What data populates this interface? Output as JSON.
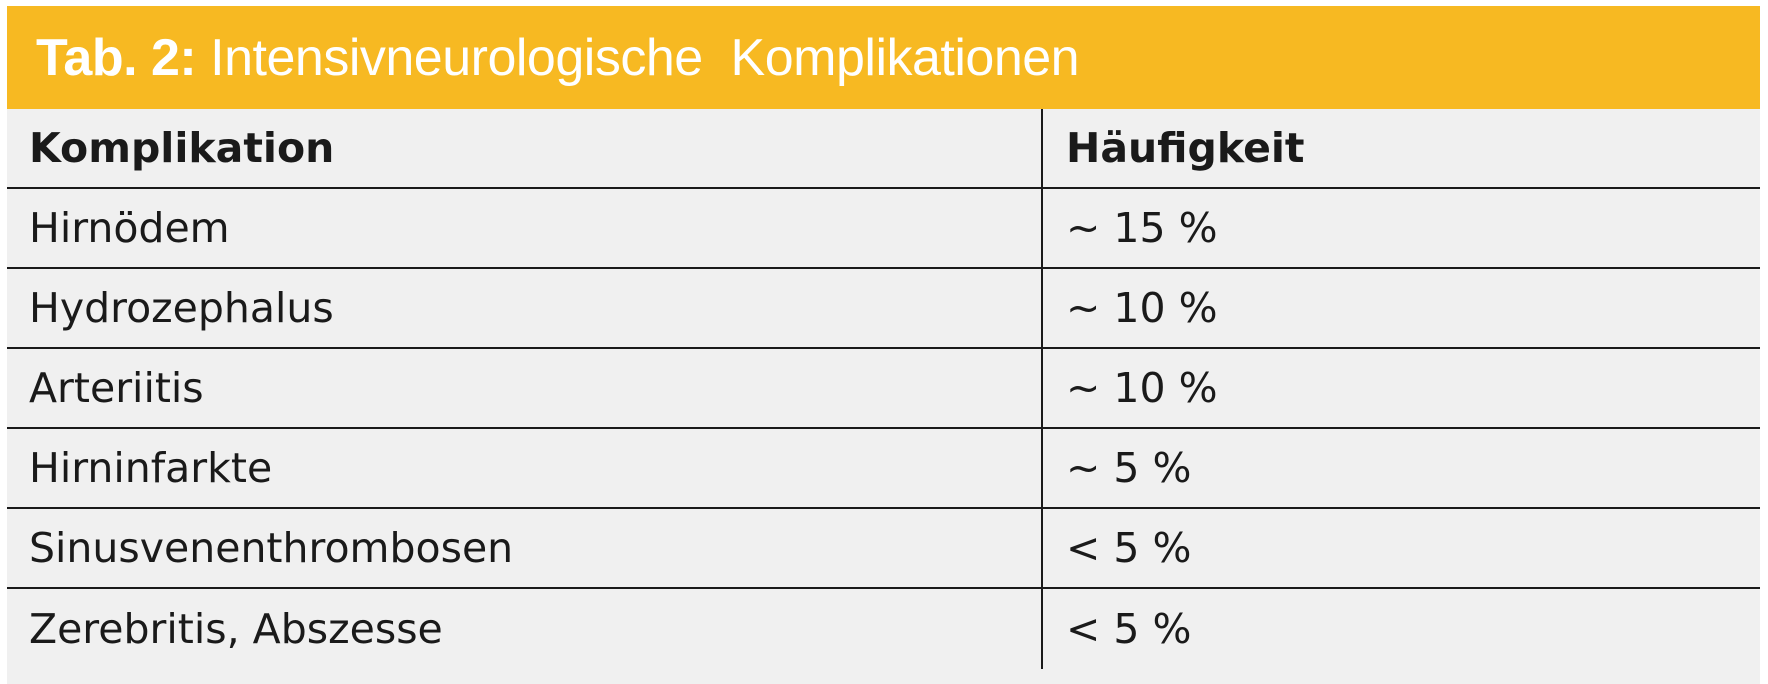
{
  "title": {
    "label": "Tab. 2:",
    "text": "Intensivneurologische  Komplikationen"
  },
  "columns": {
    "complication": "Komplikation",
    "frequency": "Häufigkeit"
  },
  "rows": [
    {
      "complication": "Hirnödem",
      "frequency": "~ 15 %"
    },
    {
      "complication": "Hydrozephalus",
      "frequency": "~ 10 %"
    },
    {
      "complication": "Arteriitis",
      "frequency": "~ 10 %"
    },
    {
      "complication": "Hirninfarkte",
      "frequency": "~ 5 %"
    },
    {
      "complication": "Sinusvenenthrombosen",
      "frequency": "< 5 %"
    },
    {
      "complication": "Zerebritis, Abszesse",
      "frequency": "< 5 %"
    }
  ],
  "colors": {
    "title_bar": "#f7b922",
    "table_background": "#f0f0f0",
    "lines": "#1a1a1a"
  }
}
